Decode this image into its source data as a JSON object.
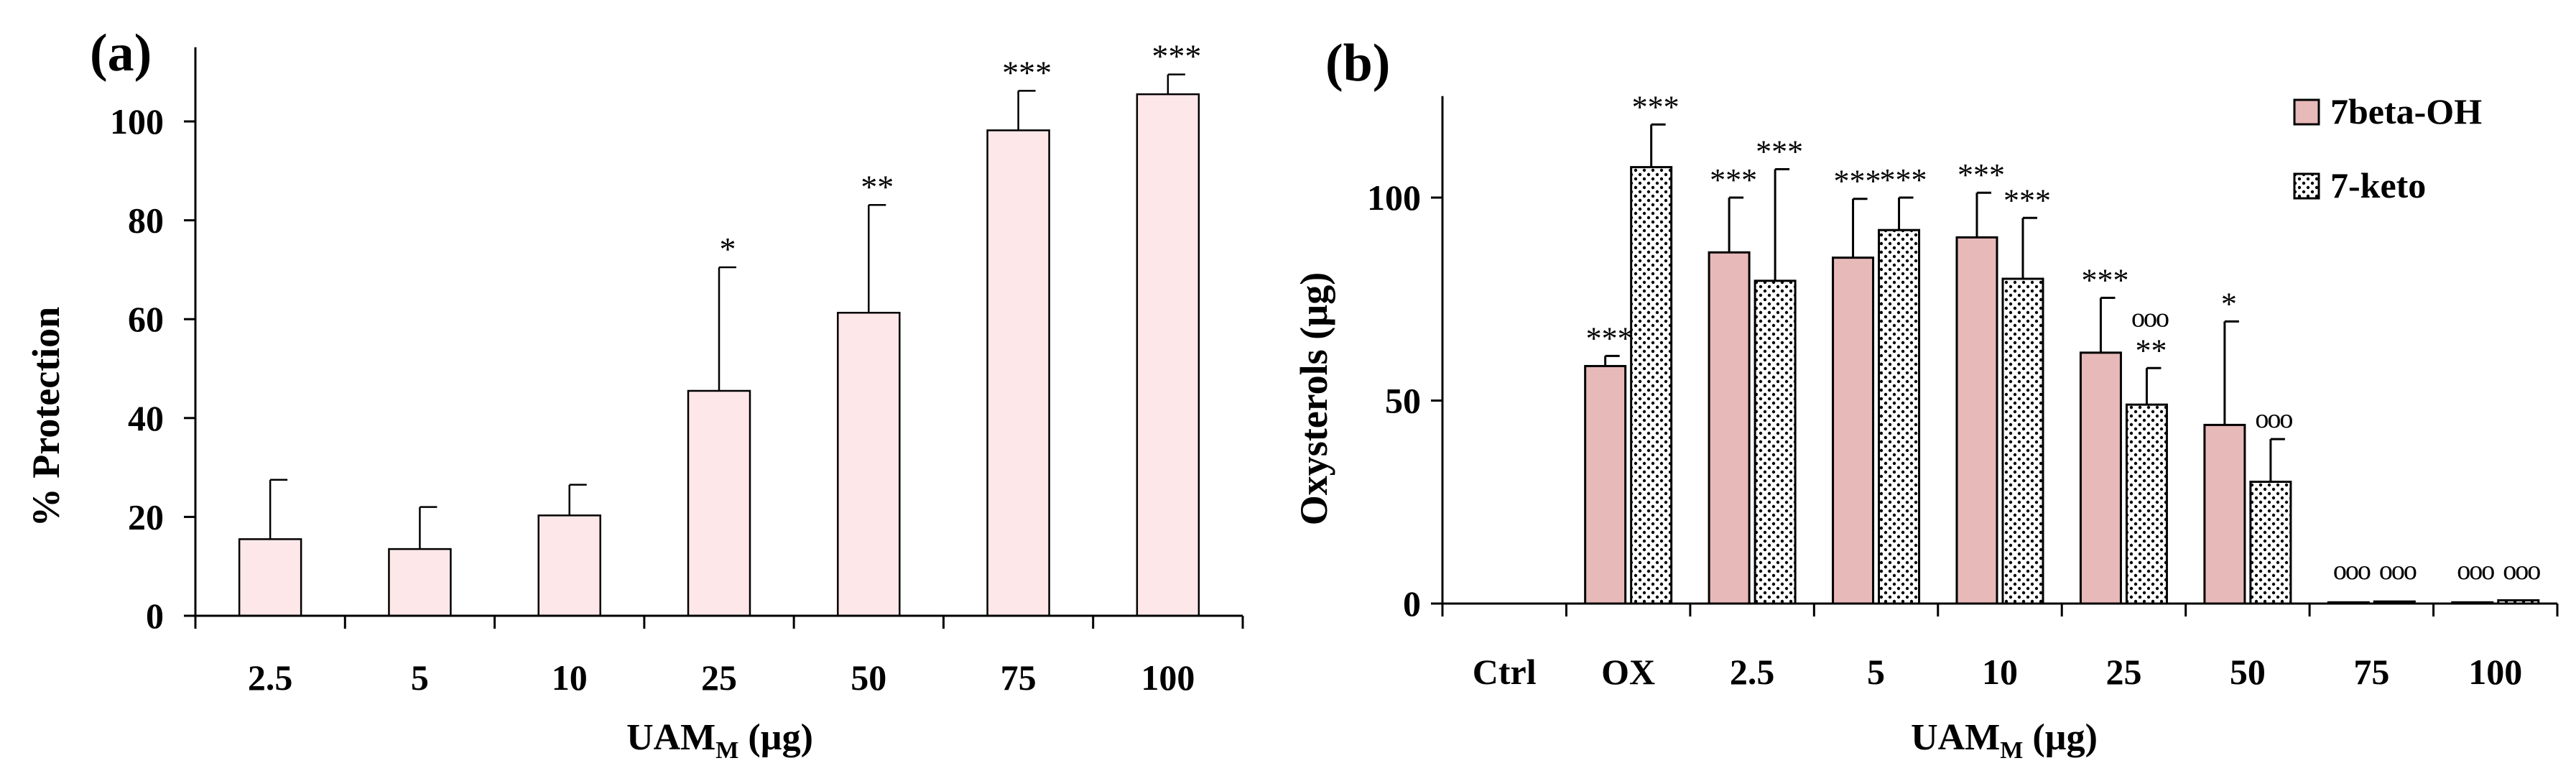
{
  "colors": {
    "bar_a_fill": "#fde7e9",
    "bar_b_fill": "#e8b9b9",
    "stroke": "#000000",
    "background": "#ffffff"
  },
  "chart_data": [
    {
      "panel_label": "(a)",
      "type": "bar",
      "title": "",
      "xlabel_main": "UAM",
      "xlabel_sub": "M",
      "xlabel_unit": " (µg)",
      "ylabel": "% Protection",
      "ylim": [
        0,
        115
      ],
      "yticks": [
        0,
        20,
        40,
        60,
        80,
        100
      ],
      "categories": [
        "2.5",
        "5",
        "10",
        "25",
        "50",
        "75",
        "100"
      ],
      "series": [
        {
          "name": "% Protection",
          "values": [
            15.5,
            13.5,
            20.3,
            45.5,
            61.3,
            98.2,
            105.5
          ],
          "errors": [
            12.0,
            8.5,
            6.2,
            25.0,
            21.8,
            8.0,
            4.0
          ],
          "annotations": [
            "",
            "",
            "",
            "*",
            "**",
            "***",
            "***"
          ]
        }
      ]
    },
    {
      "panel_label": "(b)",
      "type": "bar",
      "title": "",
      "xlabel_main": "UAM",
      "xlabel_sub": "M",
      "xlabel_unit": " (µg)",
      "ylabel": "Oxysterols  (µg)",
      "ylim": [
        0,
        125
      ],
      "yticks": [
        0,
        50,
        100
      ],
      "legend_position": "top-right",
      "categories": [
        "Ctrl",
        "OX",
        "2.5",
        "5",
        "10",
        "25",
        "50",
        "75",
        "100"
      ],
      "series": [
        {
          "name": "7beta-OH",
          "pattern": "solid",
          "values": [
            0,
            58.5,
            86.5,
            85.2,
            90.2,
            61.8,
            44.0,
            0.3,
            0.3
          ],
          "errors": [
            0,
            2.5,
            13.5,
            14.5,
            11.0,
            13.5,
            25.5,
            0,
            0
          ],
          "annotations": [
            {
              "stars": "",
              "circles": ""
            },
            {
              "stars": "***",
              "circles": ""
            },
            {
              "stars": "***",
              "circles": ""
            },
            {
              "stars": "***",
              "circles": ""
            },
            {
              "stars": "***",
              "circles": ""
            },
            {
              "stars": "***",
              "circles": ""
            },
            {
              "stars": "*",
              "circles": ""
            },
            {
              "stars": "",
              "circles": "ooo"
            },
            {
              "stars": "",
              "circles": "ooo"
            }
          ]
        },
        {
          "name": "7-keto",
          "pattern": "dotted",
          "values": [
            0,
            107.5,
            79.5,
            92.0,
            80.0,
            49.0,
            30.0,
            0.5,
            0.8
          ],
          "errors": [
            0,
            10.5,
            27.5,
            8.0,
            15.0,
            9.0,
            10.5,
            0,
            0
          ],
          "annotations": [
            {
              "stars": "",
              "circles": ""
            },
            {
              "stars": "***",
              "circles": ""
            },
            {
              "stars": "***",
              "circles": ""
            },
            {
              "stars": "***",
              "circles": ""
            },
            {
              "stars": "***",
              "circles": ""
            },
            {
              "stars": "**",
              "circles": "ooo"
            },
            {
              "stars": "",
              "circles": "ooo"
            },
            {
              "stars": "",
              "circles": "ooo"
            },
            {
              "stars": "",
              "circles": "ooo"
            }
          ]
        }
      ]
    }
  ]
}
